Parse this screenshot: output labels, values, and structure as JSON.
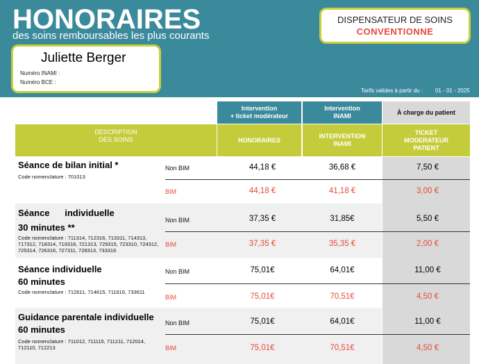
{
  "header": {
    "title": "HONORAIRES",
    "subtitle": "des soins remboursables les plus courants",
    "name": "Juliette Berger",
    "inami_label": "Numéro INAMI :",
    "bce_label": "Numéro BCE :",
    "dispensateur_line1": "DISPENSATEUR DE SOINS",
    "dispensateur_line2": "CONVENTIONNE",
    "tarifs_label": "Tarifs valides à partir du :",
    "tarifs_date": "01 - 01 - 2025"
  },
  "table_header": {
    "col1_top": "Intervention\n+ ticket modérateur",
    "col2_top": "Intervention\nINAMI",
    "col3_top": "À charge du patient",
    "desc": "DESCRIPTION\nDES SOINS",
    "col1": "HONORAIRES",
    "col2": "INTERVENTION\nINAMI",
    "col3": "TICKET\nMODERATEUR\nPATIENT"
  },
  "rows": [
    {
      "name": "Séance de bilan initial *",
      "code": "Code nomenclature : 701013",
      "nonbim_label": "Non BIM",
      "bim_label": "BIM",
      "nonbim": [
        "44,18 €",
        "36,68 €",
        "7,50 €"
      ],
      "bim": [
        "44,18 €",
        "41,18 €",
        "3,00 €"
      ]
    },
    {
      "name": "Séance      individuelle\n30 minutes **",
      "code": "Code nomenclature : 711314, 712316, 713311, 714313, 717312, 718314, 719316, 721313, 729315, 723310, 724312, 725314, 726316, 727311, 728313, 733316",
      "nonbim_label": "Non BIM",
      "bim_label": "BIM",
      "nonbim": [
        "37,35 €",
        "31,85€",
        "5,50 €"
      ],
      "bim": [
        "37,35 €",
        "35,35 €",
        "2,00 €"
      ]
    },
    {
      "name": "Séance individuelle\n60 minutes",
      "code": "Code nomenclature : 712611, 714615, 711616, 733611",
      "nonbim_label": "Non BIM",
      "bim_label": "BIM",
      "nonbim": [
        "75,01€",
        "64,01€",
        "11,00 €"
      ],
      "bim": [
        "75,01€",
        "70,51€",
        "4,50 €"
      ]
    },
    {
      "name": "Guidance parentale individuelle\n60 minutes",
      "code": "Code nomenclature : 711012, 711115, 711211, 712014, 712110, 712213",
      "nonbim_label": "Non BIM",
      "bim_label": "BIM",
      "nonbim": [
        "75,01€",
        "64,01€",
        "11,00 €"
      ],
      "bim": [
        "75,01€",
        "70,51€",
        "4,50 €"
      ]
    }
  ]
}
